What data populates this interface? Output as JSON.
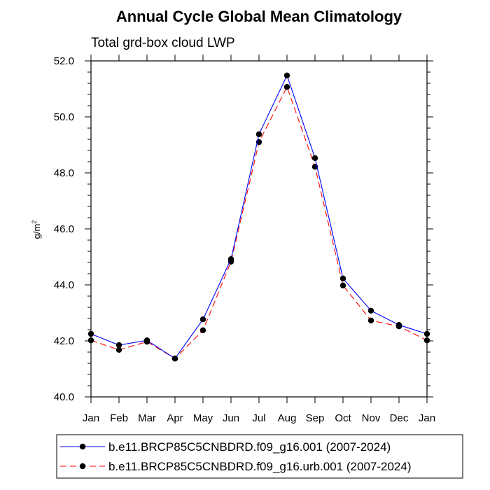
{
  "chart_data": {
    "type": "line",
    "title": "Annual Cycle Global Mean Climatology",
    "subtitle": "Total grd-box cloud LWP",
    "xlabel": "",
    "ylabel": "g/m",
    "ylabel_superscript": "2",
    "ylim": [
      40.0,
      52.0
    ],
    "yticks": [
      "40.0",
      "42.0",
      "44.0",
      "46.0",
      "48.0",
      "50.0",
      "52.0"
    ],
    "categories": [
      "Jan",
      "Feb",
      "Mar",
      "Apr",
      "May",
      "Jun",
      "Jul",
      "Aug",
      "Sep",
      "Oct",
      "Nov",
      "Dec",
      "Jan"
    ],
    "grid": false,
    "legend_position": "bottom",
    "series": [
      {
        "name": "b.e11.BRCP85C5CNBDRD.f09_g16.001 (2007-2024)",
        "color": "#0000ff",
        "dash": "solid",
        "values": [
          42.25,
          41.85,
          42.02,
          41.37,
          42.77,
          44.92,
          49.38,
          51.48,
          48.53,
          44.23,
          43.08,
          42.57,
          42.25
        ]
      },
      {
        "name": "b.e11.BRCP85C5CNBDRD.f09_g16.urb.001 (2007-2024)",
        "color": "#ff0000",
        "dash": "dashed",
        "values": [
          42.02,
          41.68,
          41.97,
          41.37,
          42.38,
          44.83,
          49.1,
          51.07,
          48.22,
          43.98,
          42.73,
          42.52,
          42.02
        ]
      }
    ]
  }
}
